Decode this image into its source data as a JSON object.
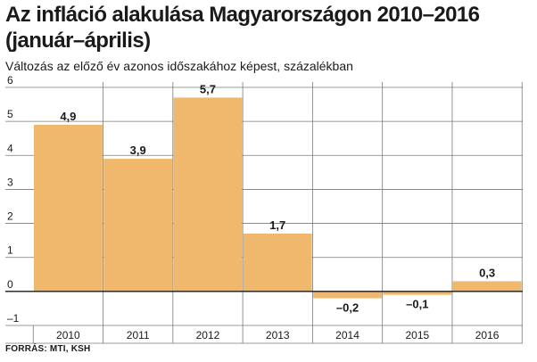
{
  "header": {
    "title_line1": "Az infláció alakulása Magyarországon 2010–2016",
    "title_line2": "(január–április)",
    "subtitle": "Változás az előző év azonos időszakához képest, százalékban"
  },
  "source": "FORRÁS: MTI, KSH",
  "colors": {
    "bar": "#f0b86d",
    "grid": "#7a7a7a",
    "axis": "#1a1a1a"
  },
  "chart_data": {
    "type": "bar",
    "categories": [
      "2010",
      "2011",
      "2012",
      "2013",
      "2014",
      "2015",
      "2016"
    ],
    "values": [
      4.9,
      3.9,
      5.7,
      1.7,
      -0.2,
      -0.1,
      0.3
    ],
    "value_labels": [
      "4,9",
      "3,9",
      "5,7",
      "1,7",
      "–0,2",
      "–0,1",
      "0,3"
    ],
    "y_ticks": [
      6,
      5,
      4,
      3,
      2,
      1,
      0,
      -1
    ],
    "y_tick_labels": [
      "6",
      "5",
      "4",
      "3",
      "2",
      "1",
      "0",
      "–1"
    ],
    "ylim": [
      -1,
      6
    ],
    "title": "Az infláció alakulása Magyarországon 2010–2016 (január–április)",
    "xlabel": "",
    "ylabel": "",
    "grid": true,
    "legend": "none"
  }
}
